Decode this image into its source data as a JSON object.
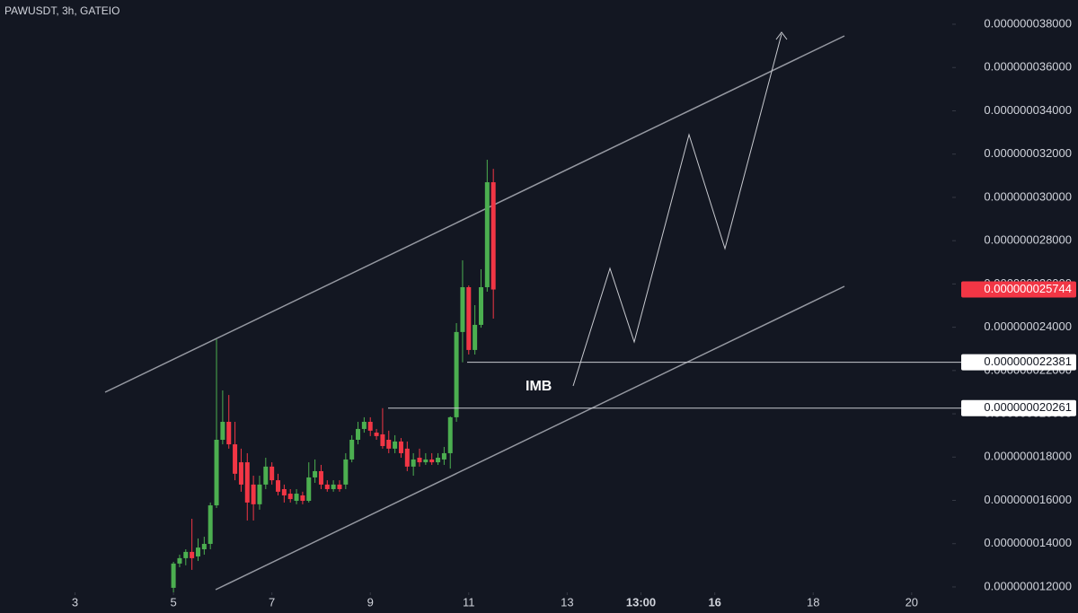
{
  "chart_data": {
    "type": "candlestick",
    "title": "PAWUSDT, 3h, GATEIO",
    "x": [
      0,
      1,
      2,
      3,
      4,
      5,
      6,
      7,
      8,
      9,
      10,
      11,
      12,
      13,
      14,
      15,
      16,
      17,
      18,
      19,
      20,
      21,
      22,
      23,
      24,
      25,
      26,
      27,
      28,
      29,
      30,
      31,
      32,
      33,
      34,
      35,
      36,
      37,
      38,
      39,
      40,
      41,
      42,
      43,
      44,
      45,
      46,
      47,
      48,
      49,
      50,
      51,
      52
    ],
    "open": [
      1.196e-08,
      1.308e-08,
      1.333e-08,
      1.362e-08,
      1.341e-08,
      1.374e-08,
      1.399e-08,
      1.577e-08,
      1.88e-08,
      1.963e-08,
      1.859e-08,
      1.776e-08,
      1.776e-08,
      1.673e-08,
      1.582e-08,
      1.673e-08,
      1.756e-08,
      1.693e-08,
      1.652e-08,
      1.631e-08,
      1.598e-08,
      1.623e-08,
      1.598e-08,
      1.706e-08,
      1.735e-08,
      1.673e-08,
      1.652e-08,
      1.673e-08,
      1.673e-08,
      1.789e-08,
      1.88e-08,
      1.93e-08,
      1.963e-08,
      1.913e-08,
      1.905e-08,
      1.88e-08,
      1.839e-08,
      1.872e-08,
      1.839e-08,
      1.756e-08,
      1.797e-08,
      1.776e-08,
      1.789e-08,
      1.776e-08,
      1.789e-08,
      1.818e-08,
      1.984e-08,
      2.378e-08,
      2.585e-08,
      2.295e-08,
      2.411e-08,
      2.585e-08,
      3.07e-08
    ],
    "high": [
      1.316e-08,
      1.349e-08,
      1.374e-08,
      1.515e-08,
      1.424e-08,
      1.432e-08,
      1.59e-08,
      2.344e-08,
      2.108e-08,
      2.087e-08,
      1.963e-08,
      1.839e-08,
      1.818e-08,
      1.714e-08,
      1.714e-08,
      1.797e-08,
      1.776e-08,
      1.723e-08,
      1.673e-08,
      1.652e-08,
      1.652e-08,
      1.64e-08,
      1.776e-08,
      1.789e-08,
      1.764e-08,
      1.693e-08,
      1.693e-08,
      1.693e-08,
      1.818e-08,
      1.901e-08,
      1.963e-08,
      1.984e-08,
      1.984e-08,
      1.93e-08,
      2.026e-08,
      1.922e-08,
      1.901e-08,
      1.888e-08,
      1.872e-08,
      1.818e-08,
      1.839e-08,
      1.818e-08,
      1.818e-08,
      1.818e-08,
      1.847e-08,
      1.988e-08,
      2.419e-08,
      2.709e-08,
      2.593e-08,
      2.502e-08,
      2.668e-08,
      3.174e-08,
      3.132e-08
    ],
    "low": [
      1.175e-08,
      1.291e-08,
      1.3e-08,
      1.279e-08,
      1.32e-08,
      1.349e-08,
      1.374e-08,
      1.565e-08,
      1.859e-08,
      1.839e-08,
      1.693e-08,
      1.64e-08,
      1.507e-08,
      1.507e-08,
      1.557e-08,
      1.652e-08,
      1.673e-08,
      1.623e-08,
      1.59e-08,
      1.59e-08,
      1.582e-08,
      1.582e-08,
      1.59e-08,
      1.681e-08,
      1.652e-08,
      1.64e-08,
      1.64e-08,
      1.64e-08,
      1.652e-08,
      1.776e-08,
      1.859e-08,
      1.913e-08,
      1.897e-08,
      1.88e-08,
      1.839e-08,
      1.818e-08,
      1.818e-08,
      1.797e-08,
      1.735e-08,
      1.714e-08,
      1.756e-08,
      1.764e-08,
      1.764e-08,
      1.764e-08,
      1.764e-08,
      1.747e-08,
      1.963e-08,
      2.238e-08,
      2.274e-08,
      2.274e-08,
      2.398e-08,
      2.564e-08,
      2.44e-08
    ],
    "close": [
      1.308e-08,
      1.333e-08,
      1.362e-08,
      1.333e-08,
      1.382e-08,
      1.399e-08,
      1.577e-08,
      1.88e-08,
      1.963e-08,
      1.859e-08,
      1.723e-08,
      1.673e-08,
      1.59e-08,
      1.582e-08,
      1.673e-08,
      1.756e-08,
      1.693e-08,
      1.64e-08,
      1.623e-08,
      1.606e-08,
      1.631e-08,
      1.598e-08,
      1.706e-08,
      1.735e-08,
      1.673e-08,
      1.652e-08,
      1.673e-08,
      1.652e-08,
      1.789e-08,
      1.88e-08,
      1.93e-08,
      1.963e-08,
      1.922e-08,
      1.897e-08,
      1.851e-08,
      1.839e-08,
      1.872e-08,
      1.818e-08,
      1.756e-08,
      1.789e-08,
      1.776e-08,
      1.789e-08,
      1.776e-08,
      1.797e-08,
      1.818e-08,
      1.984e-08,
      2.378e-08,
      2.585e-08,
      2.295e-08,
      2.411e-08,
      2.585e-08,
      3.07e-08,
      2.5744e-08
    ],
    "up_color": "#4caf50",
    "down_color": "#f23645",
    "xlim": [
      -28.2,
      126.6
    ],
    "xticks": [
      {
        "value": -16,
        "label": "3"
      },
      {
        "value": 0,
        "label": "5"
      },
      {
        "value": 16,
        "label": "7"
      },
      {
        "value": 32,
        "label": "9"
      },
      {
        "value": 48,
        "label": "11"
      },
      {
        "value": 64,
        "label": "13"
      },
      {
        "value": 76,
        "label": "13:00"
      },
      {
        "value": 88,
        "label": "16"
      },
      {
        "value": 104,
        "label": "18"
      },
      {
        "value": 120,
        "label": "20"
      }
    ],
    "ylim": [
      1.175e-08,
      3.912e-08
    ],
    "yticks": [
      {
        "value": 1.2e-08,
        "label": "0.000000012000"
      },
      {
        "value": 1.4e-08,
        "label": "0.000000014000"
      },
      {
        "value": 1.6e-08,
        "label": "0.000000016000"
      },
      {
        "value": 1.8e-08,
        "label": "0.000000018000"
      },
      {
        "value": 2e-08,
        "label": "0.000000020000"
      },
      {
        "value": 2.2e-08,
        "label": "0.000000022000"
      },
      {
        "value": 2.4e-08,
        "label": "0.000000024000"
      },
      {
        "value": 2.6e-08,
        "label": "0.000000026000"
      },
      {
        "value": 2.8e-08,
        "label": "0.000000028000"
      },
      {
        "value": 3e-08,
        "label": "0.000000030000"
      },
      {
        "value": 3.2e-08,
        "label": "0.000000032000"
      },
      {
        "value": 3.4e-08,
        "label": "0.000000034000"
      },
      {
        "value": 3.6e-08,
        "label": "0.000000036000"
      },
      {
        "value": 3.8e-08,
        "label": "0.000000038000"
      }
    ],
    "levels": [
      {
        "value": 2.2381e-08,
        "label": "0.000000022381"
      },
      {
        "value": 2.0261e-08,
        "label": "0.000000020261"
      }
    ],
    "last_price": {
      "value": 2.5744e-08,
      "label": "0.000000025744"
    },
    "annotation": "IMB"
  }
}
